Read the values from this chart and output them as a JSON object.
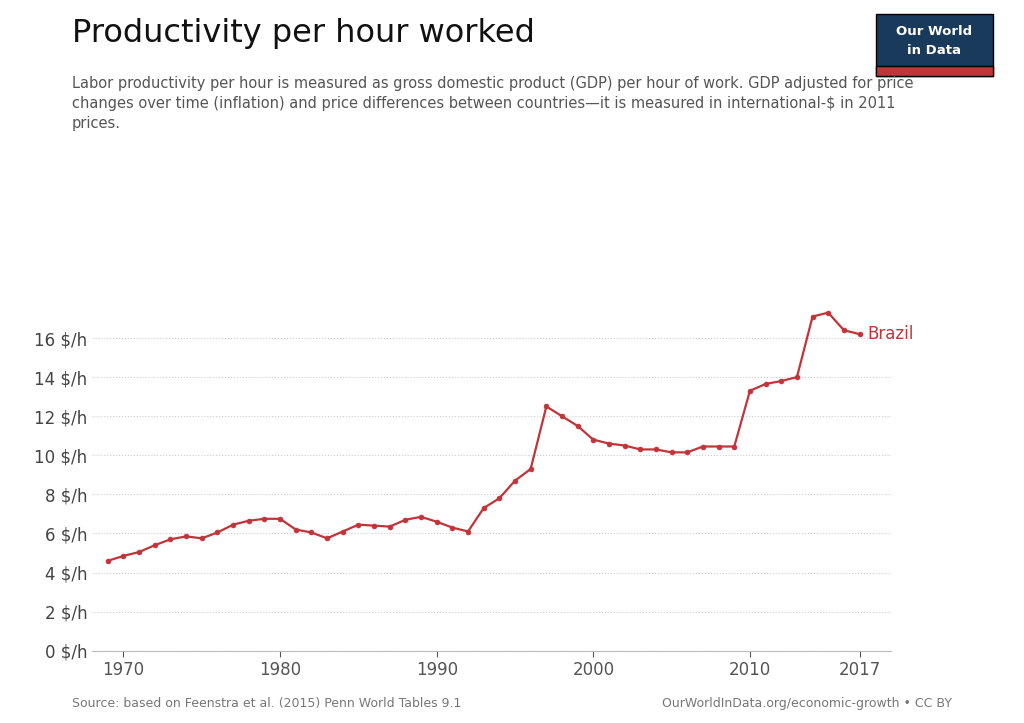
{
  "title": "Productivity per hour worked",
  "subtitle": "Labor productivity per hour is measured as gross domestic product (GDP) per hour of work. GDP adjusted for price\nchanges over time (inflation) and price differences between countries—it is measured in international-$ in 2011\nprices.",
  "source_left": "Source: based on Feenstra et al. (2015) Penn World Tables 9.1",
  "source_right": "OurWorldInData.org/economic-growth • CC BY",
  "line_color": "#C0343A",
  "marker_color": "#C0343A",
  "label_color": "#C0343A",
  "background_color": "#ffffff",
  "grid_color": "#cccccc",
  "years": [
    1969,
    1970,
    1971,
    1972,
    1973,
    1974,
    1975,
    1976,
    1977,
    1978,
    1979,
    1980,
    1981,
    1982,
    1983,
    1984,
    1985,
    1986,
    1987,
    1988,
    1989,
    1990,
    1991,
    1992,
    1993,
    1994,
    1995,
    1996,
    1997,
    1998,
    1999,
    2000,
    2001,
    2002,
    2003,
    2004,
    2005,
    2006,
    2007,
    2008,
    2009,
    2010,
    2011,
    2012,
    2013,
    2014,
    2015,
    2016,
    2017
  ],
  "values": [
    4.6,
    4.85,
    5.05,
    5.4,
    5.7,
    5.85,
    5.75,
    6.05,
    6.45,
    6.65,
    6.75,
    6.75,
    6.2,
    6.05,
    5.75,
    6.1,
    6.45,
    6.4,
    6.35,
    6.7,
    6.85,
    6.6,
    6.3,
    6.1,
    7.3,
    7.8,
    8.7,
    9.3,
    12.5,
    12.0,
    11.5,
    10.8,
    10.6,
    10.5,
    10.3,
    10.3,
    10.15,
    10.15,
    10.45,
    10.45,
    10.45,
    13.3,
    13.65,
    13.8,
    14.0,
    17.1,
    17.3,
    16.4,
    16.2
  ],
  "ylabel_ticks": [
    0,
    2,
    4,
    6,
    8,
    10,
    12,
    14,
    16
  ],
  "ylim": [
    0,
    18.5
  ],
  "xlim": [
    1968,
    2019
  ],
  "xticks": [
    1970,
    1980,
    1990,
    2000,
    2010,
    2017
  ],
  "owid_logo_bg": "#1a3a5c",
  "owid_logo_red": "#c0343a"
}
